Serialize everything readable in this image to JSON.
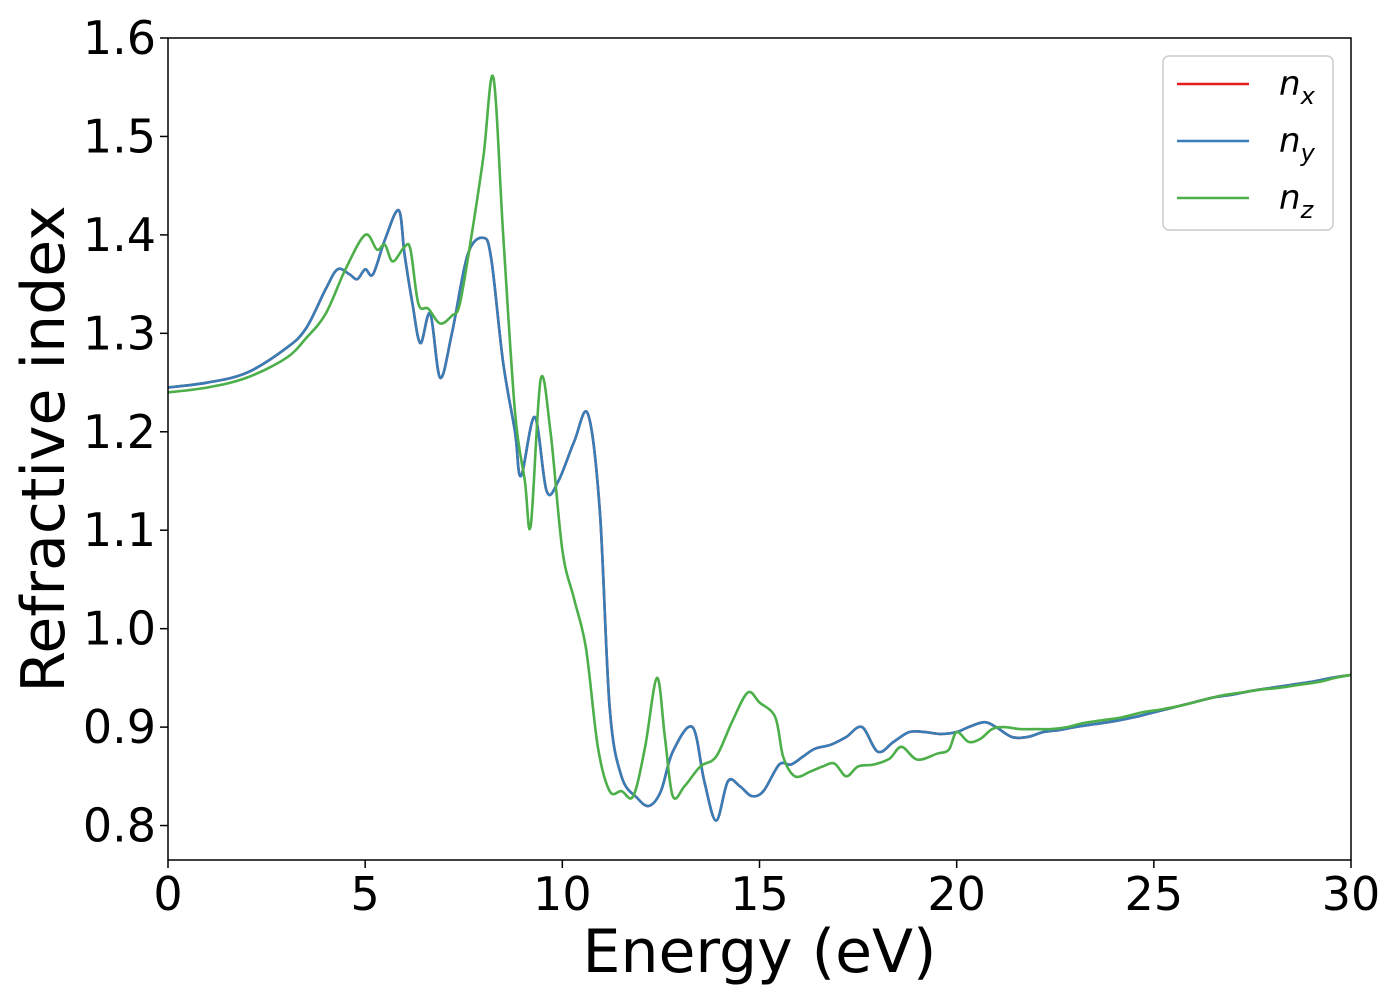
{
  "chart_data": {
    "type": "line",
    "title": "",
    "xlabel": "Energy (eV)",
    "ylabel": "Refractive index",
    "xlim": [
      0,
      30
    ],
    "ylim": [
      0.765,
      1.6
    ],
    "xticks": [
      0,
      5,
      10,
      15,
      20,
      25,
      30
    ],
    "yticks": [
      0.8,
      0.9,
      1.0,
      1.1,
      1.2,
      1.3,
      1.4,
      1.5,
      1.6
    ],
    "xtick_labels": [
      "0",
      "5",
      "10",
      "15",
      "20",
      "25",
      "30"
    ],
    "ytick_labels": [
      "0.8",
      "0.9",
      "1.0",
      "1.1",
      "1.2",
      "1.3",
      "1.4",
      "1.5",
      "1.6"
    ],
    "grid": false,
    "legend": {
      "position": "top-right",
      "entries": [
        {
          "base": "n",
          "sub": "x",
          "color": "#e41a1c"
        },
        {
          "base": "n",
          "sub": "y",
          "color": "#377eb8"
        },
        {
          "base": "n",
          "sub": "z",
          "color": "#4daf4a"
        }
      ]
    },
    "series": [
      {
        "name": "n_x",
        "color": "#e41a1c",
        "x": [
          0,
          1,
          2,
          3,
          3.5,
          4,
          4.3,
          4.6,
          4.8,
          5,
          5.2,
          5.5,
          5.85,
          6,
          6.2,
          6.4,
          6.65,
          6.9,
          7.2,
          7.6,
          8.0,
          8.2,
          8.5,
          8.8,
          8.95,
          9.3,
          9.6,
          9.9,
          10.3,
          10.65,
          10.95,
          11.2,
          11.5,
          11.9,
          12.2,
          12.5,
          12.8,
          13.3,
          13.6,
          13.9,
          14.2,
          14.5,
          14.8,
          15.1,
          15.5,
          15.8,
          16.1,
          16.4,
          16.8,
          17.2,
          17.6,
          18.0,
          18.4,
          18.8,
          19.2,
          19.6,
          20.0,
          20.3,
          20.7,
          21.0,
          21.4,
          21.8,
          22.2,
          22.6,
          23.0,
          23.5,
          24.0,
          24.5,
          25.0,
          25.5,
          26.0,
          26.5,
          27.0,
          27.5,
          28.0,
          28.5,
          29.0,
          29.5,
          30.0
        ],
        "y": [
          1.245,
          1.25,
          1.26,
          1.285,
          1.305,
          1.345,
          1.365,
          1.36,
          1.355,
          1.365,
          1.36,
          1.395,
          1.425,
          1.38,
          1.33,
          1.29,
          1.32,
          1.255,
          1.3,
          1.38,
          1.397,
          1.375,
          1.27,
          1.2,
          1.155,
          1.215,
          1.14,
          1.15,
          1.19,
          1.218,
          1.12,
          0.92,
          0.85,
          0.828,
          0.82,
          0.835,
          0.875,
          0.9,
          0.845,
          0.805,
          0.845,
          0.84,
          0.83,
          0.835,
          0.862,
          0.862,
          0.87,
          0.878,
          0.882,
          0.89,
          0.9,
          0.875,
          0.885,
          0.895,
          0.895,
          0.893,
          0.895,
          0.9,
          0.905,
          0.9,
          0.89,
          0.89,
          0.895,
          0.897,
          0.9,
          0.903,
          0.906,
          0.91,
          0.915,
          0.92,
          0.925,
          0.93,
          0.933,
          0.937,
          0.94,
          0.943,
          0.946,
          0.95,
          0.953
        ]
      },
      {
        "name": "n_y",
        "color": "#377eb8",
        "x": [
          0,
          1,
          2,
          3,
          3.5,
          4,
          4.3,
          4.6,
          4.8,
          5,
          5.2,
          5.5,
          5.85,
          6,
          6.2,
          6.4,
          6.65,
          6.9,
          7.2,
          7.6,
          8.0,
          8.2,
          8.5,
          8.8,
          8.95,
          9.3,
          9.6,
          9.9,
          10.3,
          10.65,
          10.95,
          11.2,
          11.5,
          11.9,
          12.2,
          12.5,
          12.8,
          13.3,
          13.6,
          13.9,
          14.2,
          14.5,
          14.8,
          15.1,
          15.5,
          15.8,
          16.1,
          16.4,
          16.8,
          17.2,
          17.6,
          18.0,
          18.4,
          18.8,
          19.2,
          19.6,
          20.0,
          20.3,
          20.7,
          21.0,
          21.4,
          21.8,
          22.2,
          22.6,
          23.0,
          23.5,
          24.0,
          24.5,
          25.0,
          25.5,
          26.0,
          26.5,
          27.0,
          27.5,
          28.0,
          28.5,
          29.0,
          29.5,
          30.0
        ],
        "y": [
          1.245,
          1.25,
          1.26,
          1.285,
          1.305,
          1.345,
          1.365,
          1.36,
          1.355,
          1.365,
          1.36,
          1.395,
          1.425,
          1.38,
          1.33,
          1.29,
          1.32,
          1.255,
          1.3,
          1.38,
          1.397,
          1.375,
          1.27,
          1.2,
          1.155,
          1.215,
          1.14,
          1.15,
          1.19,
          1.218,
          1.12,
          0.92,
          0.85,
          0.828,
          0.82,
          0.835,
          0.875,
          0.9,
          0.845,
          0.805,
          0.845,
          0.84,
          0.83,
          0.835,
          0.862,
          0.862,
          0.87,
          0.878,
          0.882,
          0.89,
          0.9,
          0.875,
          0.885,
          0.895,
          0.895,
          0.893,
          0.895,
          0.9,
          0.905,
          0.9,
          0.89,
          0.89,
          0.895,
          0.897,
          0.9,
          0.903,
          0.906,
          0.91,
          0.915,
          0.92,
          0.925,
          0.93,
          0.933,
          0.937,
          0.94,
          0.943,
          0.946,
          0.95,
          0.953
        ]
      },
      {
        "name": "n_z",
        "color": "#4daf4a",
        "x": [
          0,
          1,
          2,
          3,
          3.5,
          4,
          4.5,
          5.0,
          5.3,
          5.5,
          5.7,
          6.0,
          6.15,
          6.35,
          6.6,
          6.9,
          7.2,
          7.4,
          7.7,
          8.0,
          8.25,
          8.5,
          8.8,
          9.05,
          9.2,
          9.45,
          9.7,
          10.0,
          10.3,
          10.6,
          10.9,
          11.2,
          11.5,
          11.8,
          12.1,
          12.4,
          12.6,
          12.8,
          13.1,
          13.5,
          13.9,
          14.3,
          14.7,
          15.0,
          15.4,
          15.6,
          15.9,
          16.3,
          16.6,
          16.9,
          17.2,
          17.5,
          17.9,
          18.3,
          18.6,
          19.0,
          19.5,
          19.8,
          20.0,
          20.3,
          20.6,
          20.9,
          21.2,
          21.6,
          22.0,
          22.4,
          22.8,
          23.2,
          23.7,
          24.2,
          24.7,
          25.2,
          25.7,
          26.2,
          26.7,
          27.2,
          27.7,
          28.2,
          28.7,
          29.2,
          29.6,
          30.0
        ],
        "y": [
          1.24,
          1.245,
          1.255,
          1.275,
          1.295,
          1.32,
          1.365,
          1.4,
          1.385,
          1.39,
          1.373,
          1.388,
          1.385,
          1.33,
          1.325,
          1.31,
          1.318,
          1.33,
          1.4,
          1.48,
          1.56,
          1.4,
          1.22,
          1.15,
          1.105,
          1.253,
          1.2,
          1.08,
          1.03,
          0.98,
          0.88,
          0.835,
          0.835,
          0.83,
          0.88,
          0.95,
          0.89,
          0.83,
          0.84,
          0.86,
          0.87,
          0.905,
          0.935,
          0.925,
          0.91,
          0.87,
          0.85,
          0.855,
          0.86,
          0.863,
          0.85,
          0.86,
          0.862,
          0.868,
          0.88,
          0.867,
          0.873,
          0.877,
          0.895,
          0.885,
          0.888,
          0.898,
          0.9,
          0.898,
          0.898,
          0.898,
          0.9,
          0.904,
          0.907,
          0.91,
          0.915,
          0.918,
          0.922,
          0.927,
          0.932,
          0.935,
          0.938,
          0.94,
          0.943,
          0.946,
          0.95,
          0.953
        ]
      }
    ]
  }
}
